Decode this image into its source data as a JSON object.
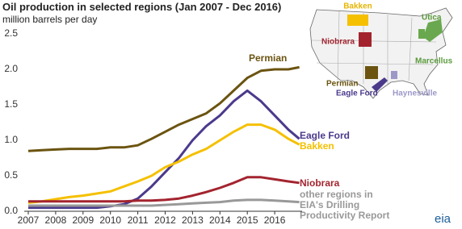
{
  "chart_data": {
    "type": "line",
    "title": "Oil production in selected regions (Jan 2007 - Dec 2016)",
    "subtitle": "million barrels per day",
    "x": [
      2007,
      2007.5,
      2008,
      2008.5,
      2009,
      2009.5,
      2010,
      2010.5,
      2011,
      2011.5,
      2012,
      2012.5,
      2013,
      2013.5,
      2014,
      2014.5,
      2015,
      2015.5,
      2016,
      2016.5,
      2016.9
    ],
    "xlim": [
      2007,
      2017
    ],
    "xticks": [
      2007,
      2008,
      2009,
      2010,
      2011,
      2012,
      2013,
      2014,
      2015,
      2016
    ],
    "ylim": [
      0,
      2.5
    ],
    "yticks": [
      {
        "value": 0,
        "label": "0.0"
      },
      0.5,
      {
        "value": 1,
        "label": "1.0"
      },
      1.5,
      {
        "value": 2,
        "label": "2.0"
      },
      2.5
    ],
    "grid": false,
    "series": [
      {
        "name": "Permian",
        "color": "#6b5410",
        "values": [
          0.85,
          0.86,
          0.87,
          0.88,
          0.88,
          0.88,
          0.9,
          0.9,
          0.93,
          1.02,
          1.12,
          1.22,
          1.3,
          1.38,
          1.52,
          1.7,
          1.88,
          1.98,
          2.0,
          2.0,
          2.03
        ]
      },
      {
        "name": "Eagle Ford",
        "color": "#4b3a8c",
        "values": [
          0.05,
          0.05,
          0.05,
          0.05,
          0.05,
          0.05,
          0.07,
          0.1,
          0.18,
          0.35,
          0.55,
          0.75,
          1.0,
          1.2,
          1.35,
          1.55,
          1.7,
          1.55,
          1.35,
          1.15,
          1.02
        ]
      },
      {
        "name": "Bakken",
        "color": "#f5c000",
        "values": [
          0.12,
          0.14,
          0.17,
          0.2,
          0.22,
          0.25,
          0.28,
          0.35,
          0.42,
          0.5,
          0.62,
          0.7,
          0.8,
          0.88,
          1.0,
          1.12,
          1.22,
          1.22,
          1.15,
          1.02,
          0.94
        ]
      },
      {
        "name": "Niobrara",
        "color": "#a3242f",
        "values": [
          0.14,
          0.14,
          0.14,
          0.14,
          0.14,
          0.14,
          0.14,
          0.14,
          0.15,
          0.15,
          0.16,
          0.18,
          0.22,
          0.27,
          0.33,
          0.4,
          0.48,
          0.48,
          0.45,
          0.42,
          0.4
        ]
      },
      {
        "name": "other regions in EIA's Drilling Productivity Report",
        "color": "#999999",
        "values": [
          0.08,
          0.08,
          0.08,
          0.08,
          0.08,
          0.08,
          0.08,
          0.08,
          0.08,
          0.08,
          0.09,
          0.1,
          0.11,
          0.12,
          0.13,
          0.15,
          0.16,
          0.16,
          0.15,
          0.14,
          0.13
        ]
      }
    ]
  },
  "map": {
    "labels": [
      "Bakken",
      "Utica",
      "Niobrara",
      "Marcellus",
      "Permian",
      "Eagle Ford",
      "Haynesville"
    ]
  },
  "logo": "eia"
}
